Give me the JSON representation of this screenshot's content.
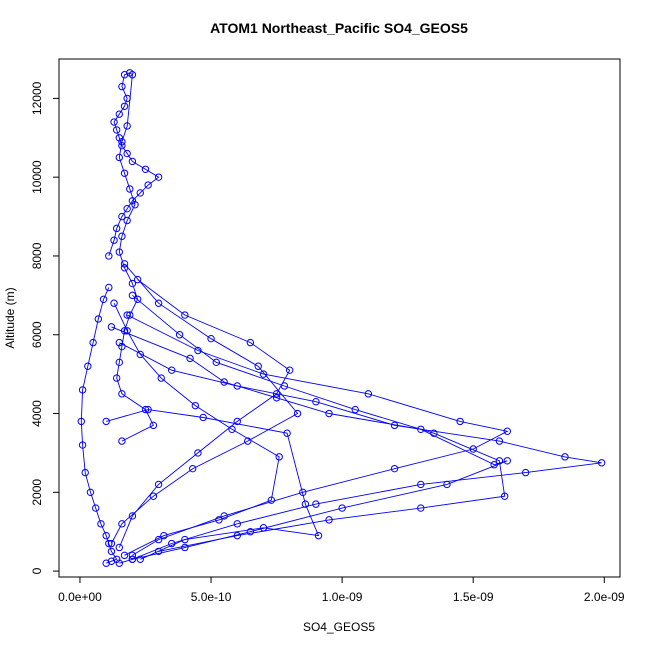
{
  "chart_data": {
    "type": "scatter",
    "title": "ATOM1 Northeast_Pacific SO4_GEOS5",
    "xlabel": "SO4_GEOS5",
    "ylabel": "Altitude (m)",
    "xlim": [
      -8e-11,
      2.06e-09
    ],
    "ylim": [
      -150,
      13000
    ],
    "xticks": [
      0,
      5e-10,
      1e-09,
      1.5e-09,
      2e-09
    ],
    "xtick_labels": [
      "0.0e+00",
      "5.0e-10",
      "1.0e-09",
      "1.5e-09",
      "2.0e-09"
    ],
    "yticks": [
      0,
      2000,
      4000,
      6000,
      8000,
      10000,
      12000
    ],
    "ytick_labels": [
      "0",
      "2000",
      "4000",
      "6000",
      "8000",
      "10000",
      "12000"
    ],
    "grid": false,
    "legend": "none",
    "color": "#0000ff",
    "series": [
      {
        "x": [
          1.1e-10,
          1.3e-10,
          1.4e-10,
          1.6e-10,
          1.8e-10,
          2e-10,
          2.3e-10,
          2.6e-10,
          3e-10,
          2.5e-10,
          2e-10,
          1.8e-10,
          1.6e-10,
          1.5e-10,
          1.4e-10,
          1.3e-10,
          1.5e-10,
          1.7e-10,
          1.8e-10,
          1.6e-10,
          1.7e-10,
          1.9e-10,
          2e-10,
          1.8e-10,
          1.6e-10,
          1.5e-10,
          1.7e-10,
          1.9e-10,
          2.1e-10,
          1.8e-10,
          1.6e-10,
          1.5e-10,
          1.7e-10,
          2e-10,
          2.2e-10,
          1.9e-10,
          1.7e-10,
          1.6e-10,
          1.5e-10,
          1.4e-10,
          1.6e-10,
          2.5e-10,
          2.8e-10,
          1.6e-10
        ],
        "y": [
          8000,
          8400,
          8700,
          9000,
          9200,
          9400,
          9600,
          9800,
          10000,
          10200,
          10400,
          10600,
          10800,
          11000,
          11200,
          11400,
          11600,
          11800,
          12000,
          12300,
          12600,
          12650,
          12600,
          11300,
          10900,
          10500,
          10100,
          9700,
          9300,
          8900,
          8500,
          8100,
          7700,
          7300,
          6900,
          6500,
          6100,
          5700,
          5300,
          4900,
          4500,
          4100,
          3700,
          3300
        ]
      },
      {
        "x": [
          1.1e-10,
          9e-11,
          7e-11,
          5e-11,
          3e-11,
          1e-11,
          5e-12,
          1e-11,
          2e-11,
          4e-11,
          6e-11,
          8e-11,
          1e-10,
          1.1e-10,
          1.2e-10,
          1.4e-10,
          1.2e-10,
          1e-10
        ],
        "y": [
          7200,
          6900,
          6400,
          5800,
          5200,
          4600,
          3800,
          3200,
          2500,
          2000,
          1600,
          1200,
          900,
          700,
          500,
          300,
          250,
          200
        ]
      },
      {
        "x": [
          1.2e-10,
          4.2e-10,
          5.5e-10,
          7.5e-10,
          9.5e-10,
          1.3e-09,
          1.58e-09,
          1.63e-09,
          1.4e-09,
          1e-09,
          6.5e-10,
          4e-10,
          2e-10,
          1.5e-10
        ],
        "y": [
          6200,
          5400,
          4800,
          4400,
          4000,
          3600,
          2700,
          2800,
          2200,
          1600,
          1000,
          600,
          300,
          200
        ]
      },
      {
        "x": [
          1.5e-10,
          3.5e-10,
          6e-10,
          9e-10,
          1.2e-09,
          1.6e-09,
          1.85e-09,
          1.99e-09,
          1.7e-09,
          1.3e-09,
          9e-10,
          6e-10,
          3.5e-10,
          2e-10
        ],
        "y": [
          5800,
          5100,
          4700,
          4300,
          3700,
          3300,
          2900,
          2750,
          2500,
          2200,
          1700,
          1200,
          700,
          300
        ]
      },
      {
        "x": [
          1.8e-10,
          4.5e-10,
          7e-10,
          1.1e-09,
          1.45e-09,
          1.63e-09,
          1.5e-09,
          1.2e-09,
          8.5e-10,
          5.5e-10,
          3e-10,
          2e-10
        ],
        "y": [
          6500,
          5600,
          5000,
          4500,
          3800,
          3550,
          3100,
          2600,
          2000,
          1400,
          800,
          400
        ]
      },
      {
        "x": [
          2e-10,
          3.8e-10,
          5.2e-10,
          7.8e-10,
          1.05e-09,
          1.35e-09,
          1.6e-09,
          1.62e-09,
          1.3e-09,
          9.5e-10,
          6e-10,
          3e-10
        ],
        "y": [
          7000,
          6000,
          5300,
          4700,
          4100,
          3500,
          2800,
          1900,
          1600,
          1300,
          900,
          500
        ]
      },
      {
        "x": [
          2.2e-10,
          4e-10,
          6.5e-10,
          8e-10,
          7.5e-10,
          6e-10,
          4.5e-10,
          3e-10,
          2e-10,
          1.5e-10
        ],
        "y": [
          7400,
          6500,
          5800,
          5100,
          4500,
          3800,
          3000,
          2200,
          1400,
          600
        ]
      },
      {
        "x": [
          1.7e-10,
          3e-10,
          5e-10,
          6.8e-10,
          8.3e-10,
          6.4e-10,
          4.3e-10,
          2.8e-10,
          1.6e-10,
          1.2e-10
        ],
        "y": [
          7800,
          6800,
          5900,
          5200,
          4000,
          3300,
          2600,
          1900,
          1200,
          700
        ]
      },
      {
        "x": [
          1.3e-10,
          1.8e-10,
          2.3e-10,
          3.1e-10,
          4.4e-10,
          5.8e-10,
          7.6e-10,
          7.3e-10,
          5.3e-10,
          3.2e-10,
          1.7e-10
        ],
        "y": [
          6800,
          6100,
          5500,
          4900,
          4200,
          3600,
          2900,
          1800,
          1300,
          900,
          400
        ]
      },
      {
        "x": [
          1e-10,
          2.6e-10,
          4.7e-10,
          7.9e-10,
          8.6e-10,
          9.1e-10,
          7e-10,
          4e-10,
          2.3e-10
        ],
        "y": [
          3800,
          4100,
          3900,
          3500,
          1700,
          900,
          1100,
          800,
          300
        ]
      }
    ]
  }
}
